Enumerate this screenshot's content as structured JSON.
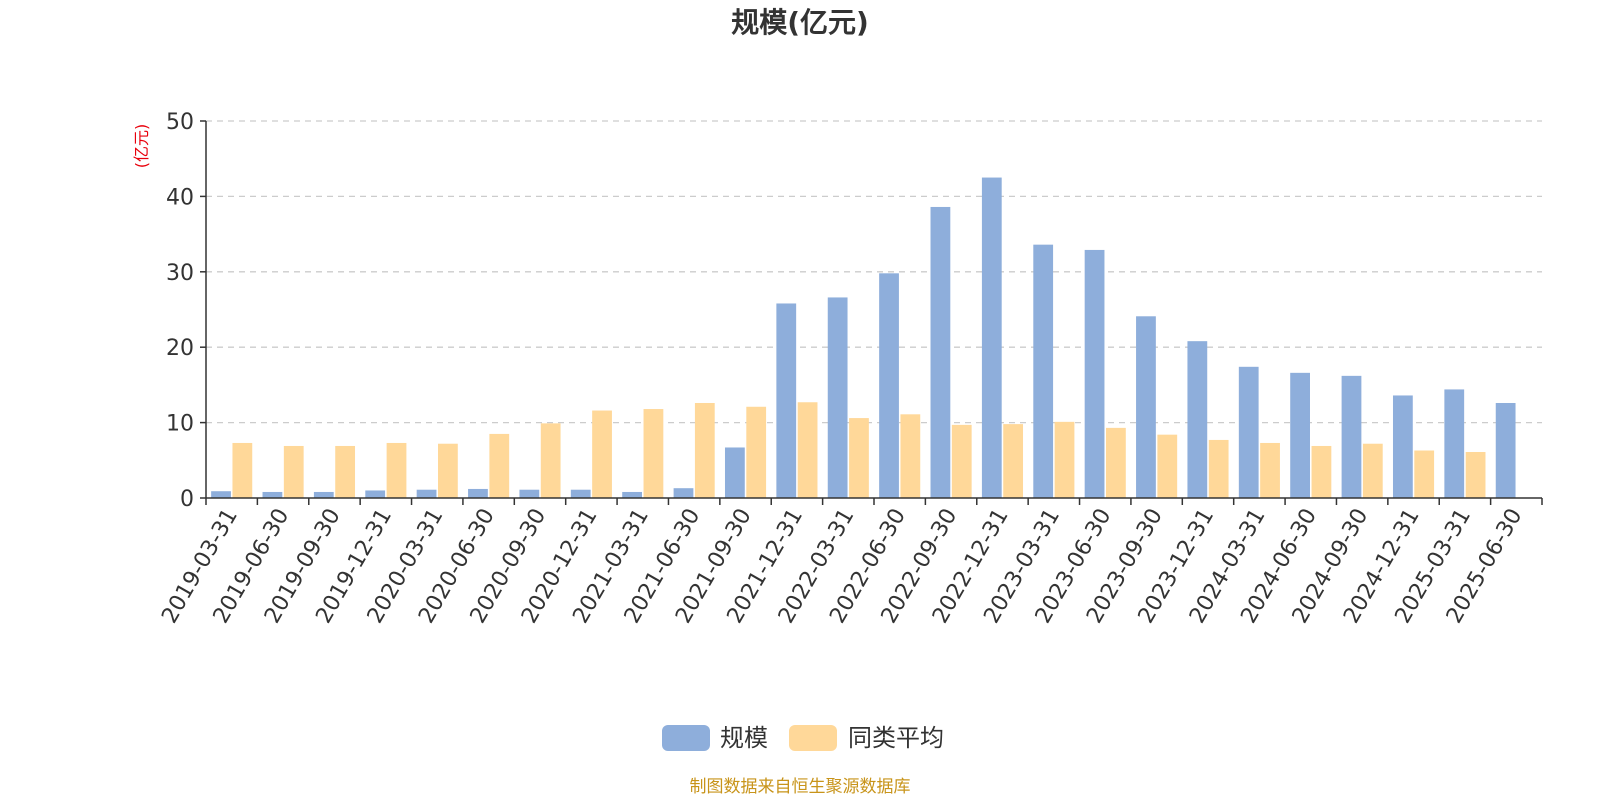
{
  "colors": {
    "series_scale": "#8eaedb",
    "series_average": "#ffd899",
    "title": "#333333",
    "axis": "#333333",
    "grid": "#cccccc",
    "unit_label": "#e8000b",
    "source": "#c8941a"
  },
  "unit_label": "(亿元)",
  "source_text": "制图数据来自恒生聚源数据库",
  "chart_data": {
    "type": "bar",
    "title": "规模(亿元)",
    "xlabel": "",
    "ylabel": "(亿元)",
    "ylim": [
      0,
      50
    ],
    "yticks": [
      0,
      10,
      20,
      30,
      40,
      50
    ],
    "grid": true,
    "legend_position": "bottom-center",
    "categories": [
      "2019-03-31",
      "2019-06-30",
      "2019-09-30",
      "2019-12-31",
      "2020-03-31",
      "2020-06-30",
      "2020-09-30",
      "2020-12-31",
      "2021-03-31",
      "2021-06-30",
      "2021-09-30",
      "2021-12-31",
      "2022-03-31",
      "2022-06-30",
      "2022-09-30",
      "2022-12-31",
      "2023-03-31",
      "2023-06-30",
      "2023-09-30",
      "2023-12-31",
      "2024-03-31",
      "2024-06-30",
      "2024-09-30",
      "2024-12-31",
      "2025-03-31",
      "2025-06-30"
    ],
    "series": [
      {
        "name": "规模",
        "values": [
          0.9,
          0.8,
          0.8,
          1.0,
          1.1,
          1.2,
          1.1,
          1.1,
          0.8,
          1.3,
          6.7,
          25.8,
          26.6,
          29.8,
          38.6,
          42.5,
          33.6,
          32.9,
          24.1,
          20.8,
          17.4,
          16.6,
          16.2,
          13.6,
          14.4,
          12.6
        ]
      },
      {
        "name": "同类平均",
        "values": [
          7.3,
          6.9,
          6.9,
          7.3,
          7.2,
          8.5,
          9.9,
          11.6,
          11.8,
          12.6,
          12.1,
          12.7,
          10.6,
          11.1,
          9.7,
          9.8,
          10.1,
          9.3,
          8.4,
          7.7,
          7.3,
          6.9,
          7.2,
          6.3,
          6.1,
          null
        ]
      }
    ]
  }
}
